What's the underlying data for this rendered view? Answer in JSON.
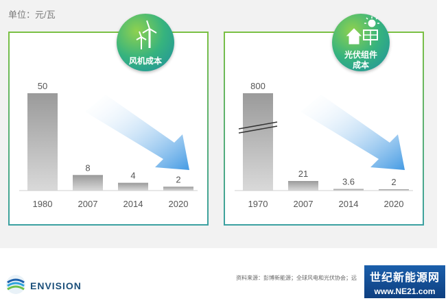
{
  "unit_label": "单位：元/瓦",
  "badges": {
    "wind": "风机成本",
    "solar": "光伏组件\n成本"
  },
  "source_text": "资料来源：彭博新能源；全球风电和光伏协会；远",
  "brand": "ENVISION",
  "watermark": {
    "line1": "世纪新能源网",
    "line2": "www.NE21.com"
  },
  "colors": {
    "panel_border": "#7ac043",
    "bar_dark": "#9a9a9a",
    "bar_light": "#d9d9d9",
    "arrow": "#2f8fe0"
  },
  "chart_data": [
    {
      "type": "bar",
      "title": "风机成本",
      "categories": [
        "1980",
        "2007",
        "2014",
        "2020"
      ],
      "values": [
        50,
        8,
        4,
        2
      ],
      "value_labels": [
        "50",
        "8",
        "4",
        "2"
      ],
      "ylim": [
        0,
        60
      ],
      "grid": false
    },
    {
      "type": "bar",
      "title": "光伏组件成本",
      "categories": [
        "1970",
        "2007",
        "2014",
        "2020"
      ],
      "values": [
        800,
        21,
        3.6,
        2
      ],
      "value_labels": [
        "800",
        "21",
        "3.6",
        "2"
      ],
      "axis_break": true,
      "grid": false
    }
  ]
}
